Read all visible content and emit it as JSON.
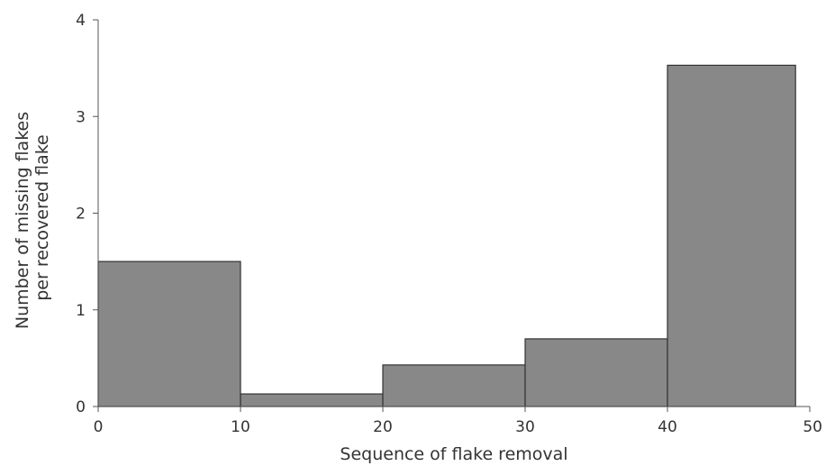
{
  "chart_data": {
    "type": "bar",
    "subtype": "histogram",
    "xlabel": "Sequence of flake removal",
    "ylabel": "Number of missing flakes per recovered flake",
    "ylabel_lines": [
      "Number of missing flakes",
      "per recovered flake"
    ],
    "xlim": [
      0,
      50
    ],
    "ylim": [
      0,
      4
    ],
    "x_ticks": [
      "0",
      "10",
      "20",
      "30",
      "40",
      "50"
    ],
    "y_ticks": [
      "0",
      "1",
      "2",
      "3",
      "4"
    ],
    "bins": [
      {
        "x_start": 0,
        "x_end": 10,
        "value": 1.5
      },
      {
        "x_start": 10,
        "x_end": 20,
        "value": 0.13
      },
      {
        "x_start": 20,
        "x_end": 30,
        "value": 0.43
      },
      {
        "x_start": 30,
        "x_end": 40,
        "value": 0.7
      },
      {
        "x_start": 40,
        "x_end": 49,
        "value": 3.53
      }
    ],
    "grid": false,
    "legend": "none",
    "bar_color": "#888888",
    "bar_edge_color": "#333333",
    "axis_color": "#555555"
  }
}
